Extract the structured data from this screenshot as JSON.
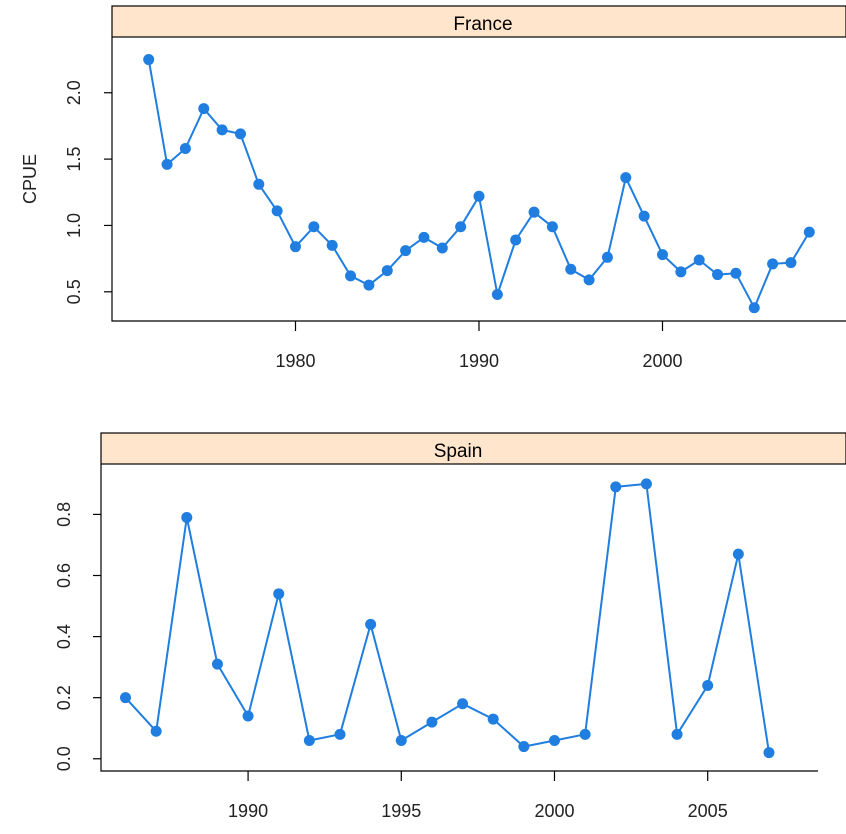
{
  "colors": {
    "strip_fill": "#ffe5cc",
    "series": "#1f7ee0",
    "axis": "#000000"
  },
  "chart_data": [
    {
      "type": "line",
      "panel": "France",
      "ylabel": "CPUE",
      "xlabel": "",
      "xlim": [
        1970,
        2010
      ],
      "ylim": [
        0.28,
        2.42
      ],
      "xticks": [
        1980,
        1990,
        2000
      ],
      "yticks": [
        0.5,
        1.0,
        1.5,
        2.0
      ],
      "ytick_labels": [
        "0.5",
        "1.0",
        "1.5",
        "2.0"
      ],
      "x": [
        1972,
        1973,
        1974,
        1975,
        1976,
        1977,
        1978,
        1979,
        1980,
        1981,
        1982,
        1983,
        1984,
        1985,
        1986,
        1987,
        1988,
        1989,
        1990,
        1991,
        1992,
        1993,
        1994,
        1995,
        1996,
        1997,
        1998,
        1999,
        2000,
        2001,
        2002,
        2003,
        2004,
        2005,
        2006,
        2007,
        2008
      ],
      "y": [
        2.25,
        1.46,
        1.58,
        1.88,
        1.72,
        1.69,
        1.31,
        1.11,
        0.84,
        0.99,
        0.85,
        0.62,
        0.55,
        0.66,
        0.81,
        0.91,
        0.83,
        0.99,
        1.22,
        0.48,
        0.89,
        1.1,
        0.99,
        0.67,
        0.59,
        0.76,
        1.36,
        1.07,
        0.78,
        0.65,
        0.74,
        0.63,
        0.64,
        0.38,
        0.71,
        0.72,
        0.95
      ]
    },
    {
      "type": "line",
      "panel": "Spain",
      "ylabel": "",
      "xlabel": "",
      "xlim": [
        1985.2,
        2008.6
      ],
      "ylim": [
        -0.04,
        0.965
      ],
      "xticks": [
        1990,
        1995,
        2000,
        2005
      ],
      "yticks": [
        0.0,
        0.2,
        0.4,
        0.6,
        0.8
      ],
      "ytick_labels": [
        "0.0",
        "0.2",
        "0.4",
        "0.6",
        "0.8"
      ],
      "x": [
        1986,
        1987,
        1988,
        1989,
        1990,
        1991,
        1992,
        1993,
        1994,
        1995,
        1996,
        1997,
        1998,
        1999,
        2000,
        2001,
        2002,
        2003,
        2004,
        2005,
        2006,
        2007
      ],
      "y": [
        0.2,
        0.09,
        0.79,
        0.31,
        0.14,
        0.54,
        0.06,
        0.08,
        0.44,
        0.06,
        0.12,
        0.18,
        0.13,
        0.04,
        0.06,
        0.08,
        0.89,
        0.9,
        0.08,
        0.24,
        0.67,
        0.02
      ]
    }
  ]
}
